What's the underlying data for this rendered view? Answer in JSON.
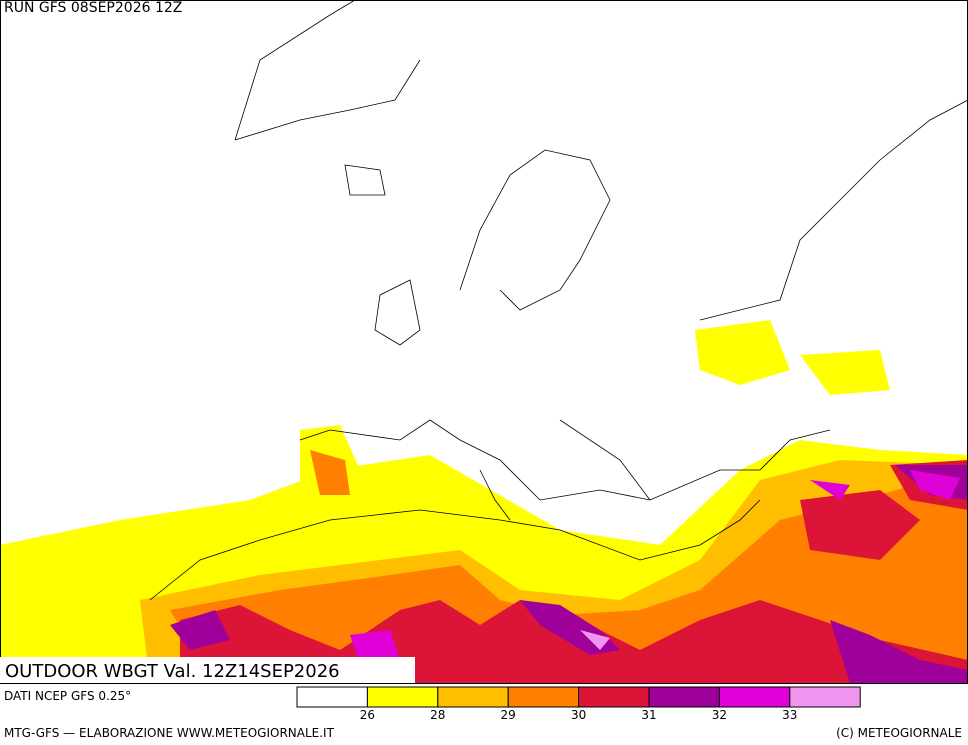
{
  "header": {
    "run": "RUN GFS 08SEP2026 12Z"
  },
  "map": {
    "title": "OUTDOOR WBGT Val. 12Z14SEP2026"
  },
  "legend": {
    "source": "DATI NCEP GFS 0.25°",
    "levels": [
      26,
      28,
      29,
      30,
      31,
      32,
      33
    ],
    "colors": [
      "#ffffff",
      "#ffff00",
      "#ffbf00",
      "#ff8000",
      "#dc1438",
      "#a0009a",
      "#e000d8",
      "#f096f0"
    ]
  },
  "footer": {
    "left": "MTG-GFS — ELABORAZIONE WWW.METEOGIORNALE.IT",
    "right": "(C) METEOGIORNALE"
  }
}
